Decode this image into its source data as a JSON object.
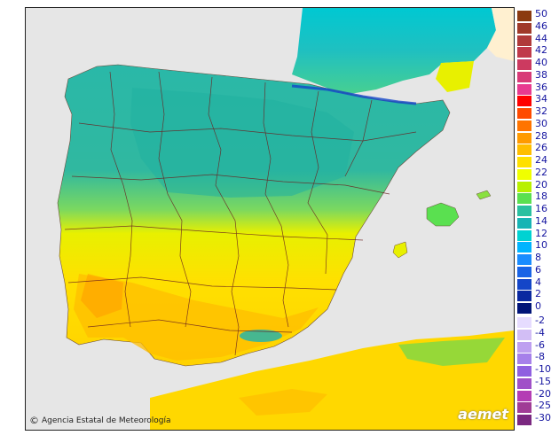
{
  "credit": {
    "copyright_symbol": "©",
    "text": "Agencia Estatal de Meteorología"
  },
  "logo": {
    "text": "aemet"
  },
  "legend": {
    "positive": [
      {
        "label": "50",
        "color": "#8b3a10"
      },
      {
        "label": "46",
        "color": "#a03a2a"
      },
      {
        "label": "44",
        "color": "#b03a3a"
      },
      {
        "label": "42",
        "color": "#c03a4a"
      },
      {
        "label": "40",
        "color": "#cc3a60"
      },
      {
        "label": "38",
        "color": "#d83a78"
      },
      {
        "label": "36",
        "color": "#e83a90"
      },
      {
        "label": "34",
        "color": "#ff0000"
      },
      {
        "label": "32",
        "color": "#ff4a00"
      },
      {
        "label": "30",
        "color": "#ff7400"
      },
      {
        "label": "28",
        "color": "#ff9a00"
      },
      {
        "label": "26",
        "color": "#ffbe00"
      },
      {
        "label": "24",
        "color": "#ffe000"
      },
      {
        "label": "22",
        "color": "#f0ff00"
      },
      {
        "label": "20",
        "color": "#b8f000"
      },
      {
        "label": "18",
        "color": "#5ae050"
      },
      {
        "label": "16",
        "color": "#2ac0a0"
      },
      {
        "label": "14",
        "color": "#18b4b4"
      },
      {
        "label": "12",
        "color": "#00d2d2"
      },
      {
        "label": "10",
        "color": "#00b4ff"
      },
      {
        "label": "8",
        "color": "#1a8cff"
      },
      {
        "label": "6",
        "color": "#1a64e6"
      },
      {
        "label": "4",
        "color": "#1446c8"
      },
      {
        "label": "2",
        "color": "#0a28a0"
      },
      {
        "label": "0",
        "color": "#001478"
      }
    ],
    "negative": [
      {
        "label": "-2",
        "color": "#e6dcff"
      },
      {
        "label": "-4",
        "color": "#d2bef5"
      },
      {
        "label": "-6",
        "color": "#be9ff0"
      },
      {
        "label": "-8",
        "color": "#a680ea"
      },
      {
        "label": "-10",
        "color": "#9060e0"
      },
      {
        "label": "-15",
        "color": "#a050c8"
      },
      {
        "label": "-20",
        "color": "#b43cb4"
      },
      {
        "label": "-25",
        "color": "#a03c96"
      },
      {
        "label": "-30",
        "color": "#7a2880"
      }
    ]
  }
}
